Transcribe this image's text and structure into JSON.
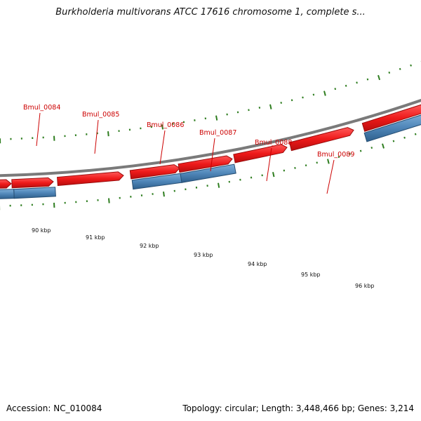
{
  "header": {
    "title": "Burkholderia multivorans ATCC 17616 chromosome 1, complete s..."
  },
  "footer": {
    "accession": "Accession: NC_010084",
    "stats": "Topology: circular; Length: 3,448,466 bp; Genes: 3,214"
  },
  "colors": {
    "forward_gene": "#e8171b",
    "reverse_gene": "#4f86b8",
    "backbone": "#7a7a7a",
    "tick": "#2e7d1f",
    "label": "#cc0000"
  },
  "map": {
    "tick_labels": [
      "90 kbp",
      "91 kbp",
      "92 kbp",
      "93 kbp",
      "94 kbp",
      "95 kbp",
      "96 kbp"
    ],
    "gene_labels": [
      "Bmul_0084",
      "Bmul_0085",
      "Bmul_0086",
      "Bmul_0087",
      "Bmul_0088",
      "Bmul_0089"
    ]
  }
}
